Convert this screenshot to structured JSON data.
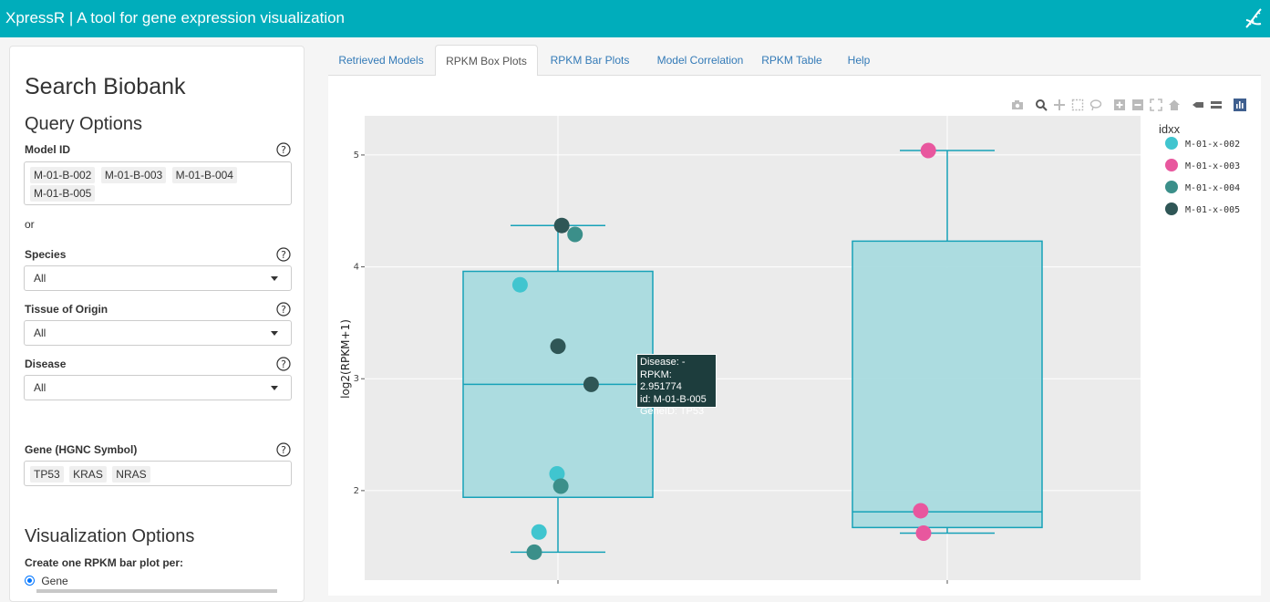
{
  "header": {
    "title": "XpressR | A tool for gene expression visualization",
    "icon": "dna-icon"
  },
  "sidebar": {
    "heading": "Search Biobank",
    "query_heading": "Query Options",
    "model_id": {
      "label": "Model ID",
      "chips": [
        "M-01-B-002",
        "M-01-B-003",
        "M-01-B-004",
        "M-01-B-005"
      ]
    },
    "or_text": "or",
    "species": {
      "label": "Species",
      "value": "All"
    },
    "tissue": {
      "label": "Tissue of Origin",
      "value": "All"
    },
    "disease": {
      "label": "Disease",
      "value": "All"
    },
    "gene": {
      "label": "Gene (HGNC Symbol)",
      "chips": [
        "TP53",
        "KRAS",
        "NRAS"
      ]
    },
    "viz_heading": "Visualization Options",
    "barplot_label": "Create one RPKM bar plot per:",
    "barplot_option": "Gene"
  },
  "tabs": [
    {
      "label": "Retrieved Models",
      "active": false
    },
    {
      "label": "RPKM Box Plots",
      "active": true
    },
    {
      "label": "RPKM Bar Plots",
      "active": false
    },
    {
      "label": "Model Correlation",
      "active": false
    },
    {
      "label": "RPKM Table",
      "active": false
    },
    {
      "label": "Help",
      "active": false
    }
  ],
  "tooltip": {
    "line1": "Disease: -",
    "line2": "RPKM: 2.951774",
    "line3": "id: M-01-B-005",
    "line4": "GeneID: TP53"
  },
  "colors": {
    "accent": "#00adbb",
    "box_fill": "#a9dbdf",
    "box_line": "#17a2b8",
    "plot_bg": "#ebebeb"
  },
  "chart_data": {
    "type": "box",
    "ylabel": "log2(RPKM+1)",
    "yticks": [
      2,
      3,
      4,
      5
    ],
    "ylim": [
      1.2,
      5.35
    ],
    "grid": true,
    "legend": {
      "title": "idxx",
      "position": "right",
      "entries": [
        {
          "name": "M-01-x-002",
          "color": "#40c5cf"
        },
        {
          "name": "M-01-x-003",
          "color": "#e8579e"
        },
        {
          "name": "M-01-x-004",
          "color": "#3b8f8a"
        },
        {
          "name": "M-01-x-005",
          "color": "#2f5656"
        }
      ]
    },
    "boxes": [
      {
        "min": 1.45,
        "q1": 1.94,
        "median": 2.95,
        "q3": 3.96,
        "max": 4.37
      },
      {
        "min": 1.62,
        "q1": 1.67,
        "median": 1.81,
        "q3": 4.23,
        "max": 5.04
      }
    ],
    "points": [
      {
        "box": 0,
        "dx": -0.4,
        "y": 3.84,
        "group": 0
      },
      {
        "box": 0,
        "dx": 0.04,
        "y": 4.37,
        "group": 3
      },
      {
        "box": 0,
        "dx": 0.18,
        "y": 4.29,
        "group": 2
      },
      {
        "box": 0,
        "dx": 0.0,
        "y": 3.29,
        "group": 3
      },
      {
        "box": 0,
        "dx": 0.35,
        "y": 2.95,
        "group": 3
      },
      {
        "box": 0,
        "dx": -0.01,
        "y": 2.15,
        "group": 0
      },
      {
        "box": 0,
        "dx": 0.03,
        "y": 2.04,
        "group": 2
      },
      {
        "box": 0,
        "dx": -0.2,
        "y": 1.63,
        "group": 0
      },
      {
        "box": 0,
        "dx": -0.25,
        "y": 1.45,
        "group": 2
      },
      {
        "box": 1,
        "dx": -0.2,
        "y": 5.04,
        "group": 1
      },
      {
        "box": 1,
        "dx": -0.28,
        "y": 1.82,
        "group": 1
      },
      {
        "box": 1,
        "dx": -0.25,
        "y": 1.62,
        "group": 1
      }
    ]
  }
}
